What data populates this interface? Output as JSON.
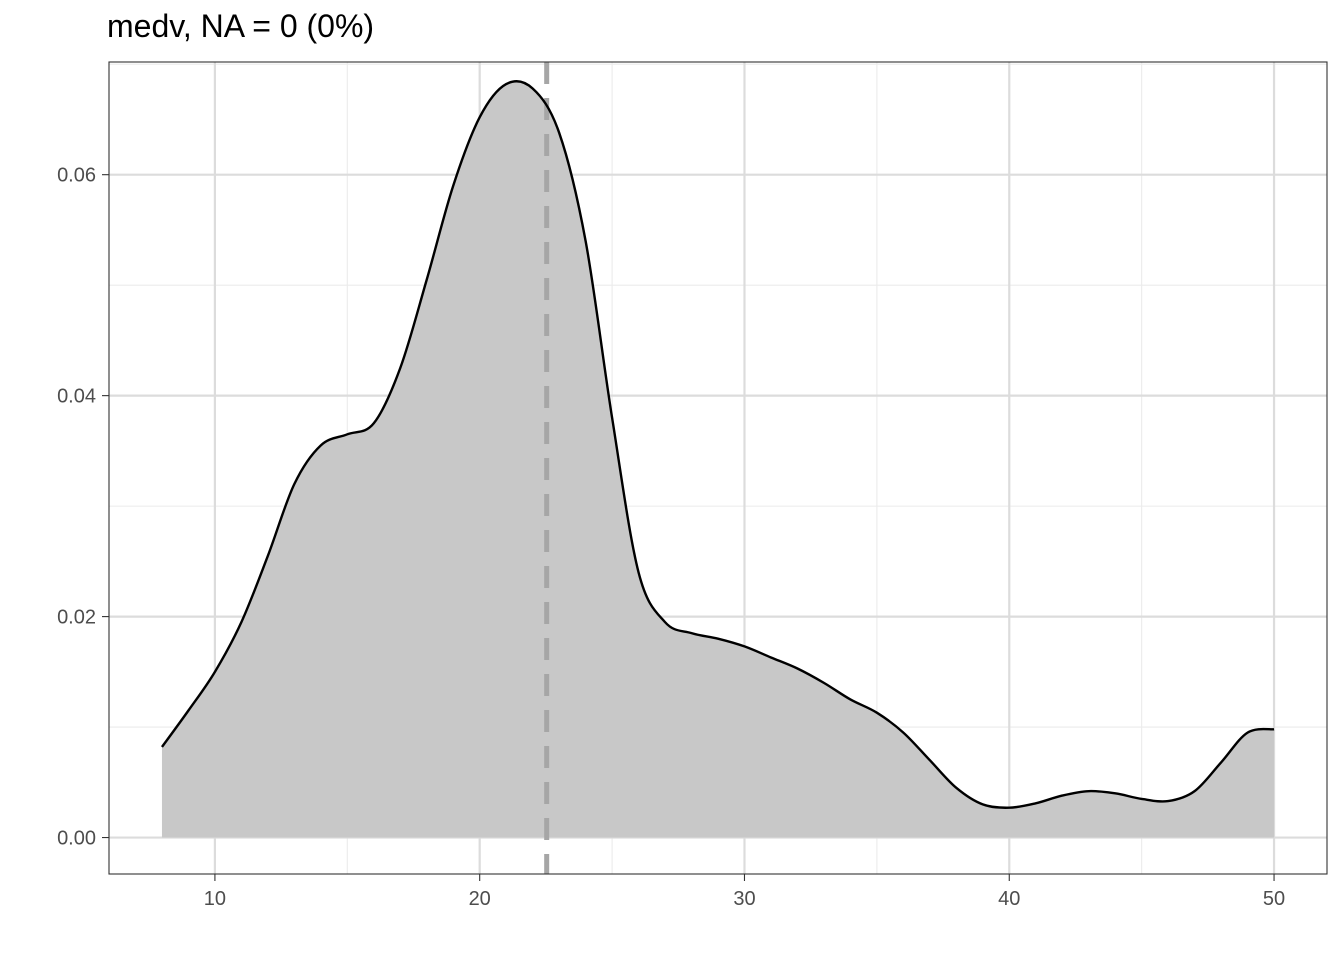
{
  "chart_data": {
    "type": "area",
    "title": "medv, NA = 0 (0%)",
    "xlabel": "",
    "ylabel": "",
    "xlim": [
      6,
      52
    ],
    "ylim": [
      -0.0033,
      0.0702
    ],
    "x_ticks": [
      10,
      20,
      30,
      40,
      50
    ],
    "y_ticks": [
      0.0,
      0.02,
      0.04,
      0.06
    ],
    "x_tick_labels": [
      "10",
      "20",
      "30",
      "40",
      "50"
    ],
    "y_tick_labels": [
      "0.00",
      "0.02",
      "0.04",
      "0.06"
    ],
    "grid": true,
    "fill_color": "#c8c8c8",
    "line_color": "#000000",
    "reference_line": {
      "x": 22.53,
      "style": "dashed",
      "color": "#a6a6a6"
    },
    "series": [
      {
        "x": [
          8.0,
          9.0,
          10.0,
          11.0,
          12.0,
          13.0,
          14.0,
          15.0,
          16.0,
          17.0,
          18.0,
          19.0,
          20.0,
          21.0,
          22.0,
          23.0,
          24.0,
          25.0,
          26.0,
          27.0,
          28.0,
          29.0,
          30.0,
          31.0,
          32.0,
          33.0,
          34.0,
          35.0,
          36.0,
          37.0,
          38.0,
          39.0,
          40.0,
          41.0,
          42.0,
          43.0,
          44.0,
          45.0,
          46.0,
          47.0,
          48.0,
          49.0,
          50.0
        ],
        "y": [
          0.0082,
          0.0115,
          0.015,
          0.0195,
          0.0255,
          0.032,
          0.0355,
          0.0365,
          0.0375,
          0.0425,
          0.0505,
          0.059,
          0.0652,
          0.0682,
          0.0678,
          0.0638,
          0.054,
          0.038,
          0.024,
          0.0195,
          0.0185,
          0.018,
          0.0173,
          0.0163,
          0.0153,
          0.014,
          0.0125,
          0.0113,
          0.0095,
          0.007,
          0.0045,
          0.003,
          0.0027,
          0.0031,
          0.0038,
          0.0042,
          0.004,
          0.0035,
          0.0033,
          0.0042,
          0.0068,
          0.0095,
          0.0098
        ]
      }
    ]
  }
}
